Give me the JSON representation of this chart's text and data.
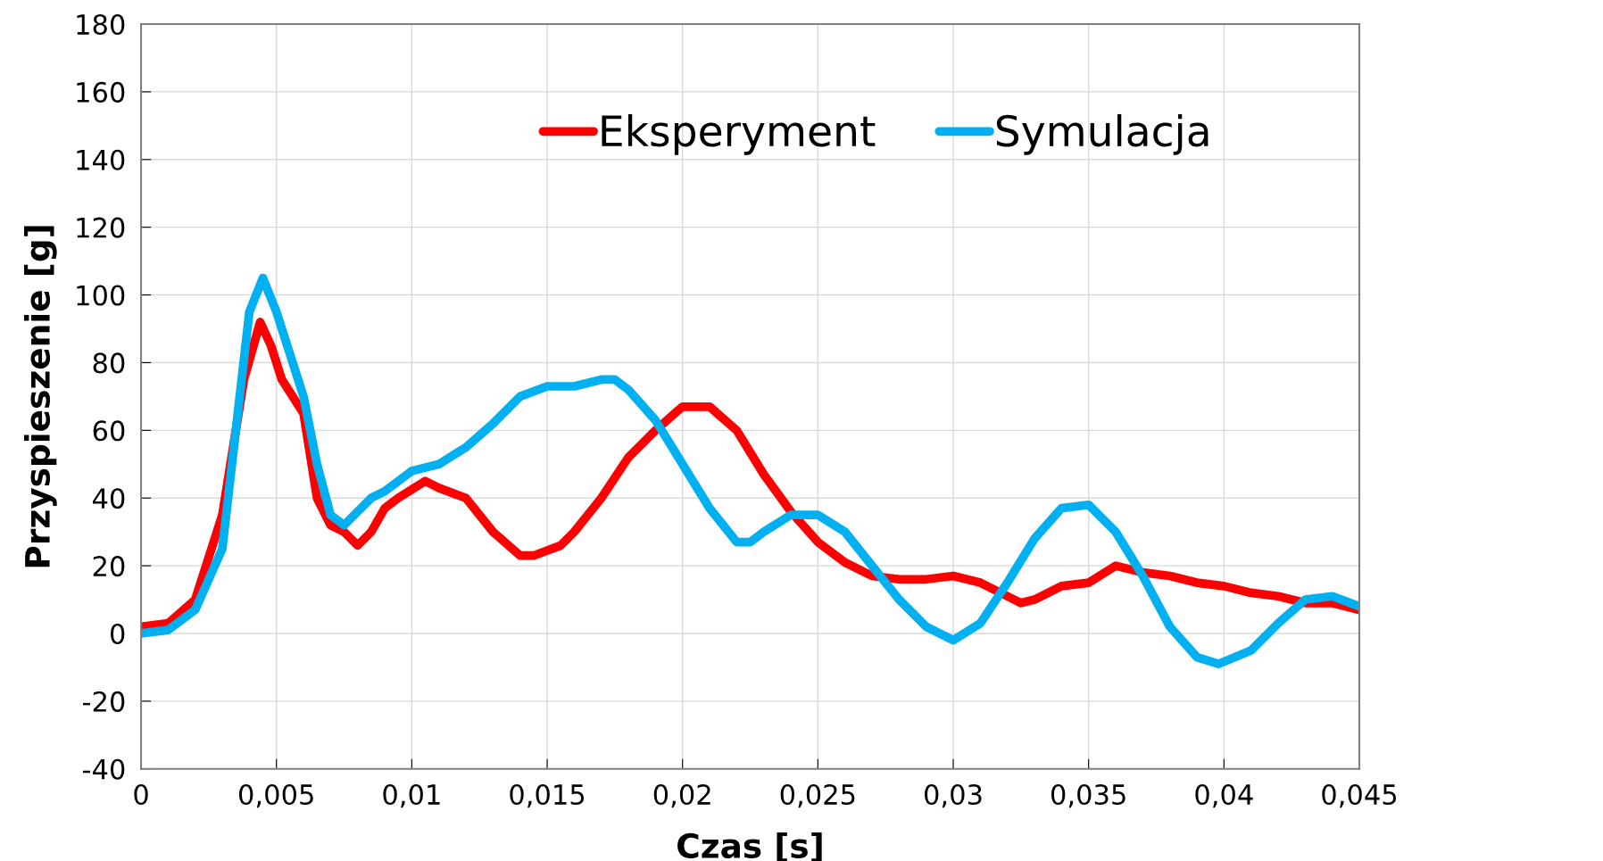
{
  "chart_data": {
    "type": "line",
    "xlabel": "Czas [s]",
    "ylabel": "Przyspieszenie [g]",
    "xlim": [
      0,
      0.045
    ],
    "ylim": [
      -40,
      180
    ],
    "xticks": [
      0,
      {
        "value": 0.005,
        "label": "0,005"
      },
      {
        "value": 0.01,
        "label": "0,01"
      },
      {
        "value": 0.015,
        "label": "0,015"
      },
      {
        "value": 0.02,
        "label": "0,02"
      },
      {
        "value": 0.025,
        "label": "0,025"
      },
      {
        "value": 0.03,
        "label": "0,03"
      },
      {
        "value": 0.035,
        "label": "0,035"
      },
      {
        "value": 0.04,
        "label": "0,04"
      },
      {
        "value": 0.045,
        "label": "0,045"
      }
    ],
    "yticks": [
      -40,
      -20,
      0,
      20,
      40,
      60,
      80,
      100,
      120,
      140,
      160,
      180
    ],
    "grid": true,
    "legend": "top right",
    "marker": "none",
    "line_style": "solid",
    "series": [
      {
        "name": "Eksperyment",
        "color": "#ff0000",
        "x": [
          0,
          0.001,
          0.002,
          0.003,
          0.0038,
          0.0044,
          0.0048,
          0.0052,
          0.006,
          0.0065,
          0.007,
          0.0075,
          0.008,
          0.0085,
          0.009,
          0.0095,
          0.0105,
          0.011,
          0.012,
          0.013,
          0.014,
          0.0145,
          0.0155,
          0.016,
          0.017,
          0.018,
          0.019,
          0.02,
          0.021,
          0.022,
          0.023,
          0.024,
          0.025,
          0.026,
          0.027,
          0.028,
          0.029,
          0.03,
          0.031,
          0.032,
          0.0325,
          0.033,
          0.034,
          0.035,
          0.036,
          0.037,
          0.038,
          0.039,
          0.04,
          0.041,
          0.042,
          0.043,
          0.044,
          0.045
        ],
        "values": [
          2,
          3,
          10,
          35,
          75,
          92,
          85,
          75,
          65,
          40,
          32,
          30,
          26,
          30,
          37,
          40,
          45,
          43,
          40,
          30,
          23,
          23,
          26,
          30,
          40,
          52,
          60,
          67,
          67,
          60,
          47,
          36,
          27,
          21,
          17,
          16,
          16,
          17,
          15,
          11,
          9,
          10,
          14,
          15,
          20,
          18,
          17,
          15,
          14,
          12,
          11,
          9,
          9,
          7
        ]
      },
      {
        "name": "Symulacja",
        "color": "#00b0f0",
        "x": [
          0,
          0.001,
          0.002,
          0.003,
          0.0035,
          0.004,
          0.0045,
          0.005,
          0.006,
          0.0065,
          0.007,
          0.0075,
          0.008,
          0.0085,
          0.009,
          0.01,
          0.011,
          0.012,
          0.013,
          0.014,
          0.015,
          0.016,
          0.017,
          0.0175,
          0.018,
          0.019,
          0.02,
          0.021,
          0.022,
          0.0225,
          0.023,
          0.024,
          0.025,
          0.026,
          0.027,
          0.028,
          0.029,
          0.03,
          0.031,
          0.032,
          0.033,
          0.034,
          0.035,
          0.036,
          0.037,
          0.038,
          0.039,
          0.0398,
          0.041,
          0.042,
          0.043,
          0.044,
          0.045
        ],
        "values": [
          0,
          1,
          7,
          25,
          60,
          95,
          105,
          95,
          70,
          50,
          35,
          32,
          36,
          40,
          42,
          48,
          50,
          55,
          62,
          70,
          73,
          73,
          75,
          75,
          72,
          63,
          50,
          37,
          27,
          27,
          30,
          35,
          35,
          30,
          20,
          10,
          2,
          -2,
          3,
          15,
          28,
          37,
          38,
          30,
          17,
          2,
          -7,
          -9,
          -5,
          3,
          10,
          11,
          8
        ]
      }
    ]
  }
}
